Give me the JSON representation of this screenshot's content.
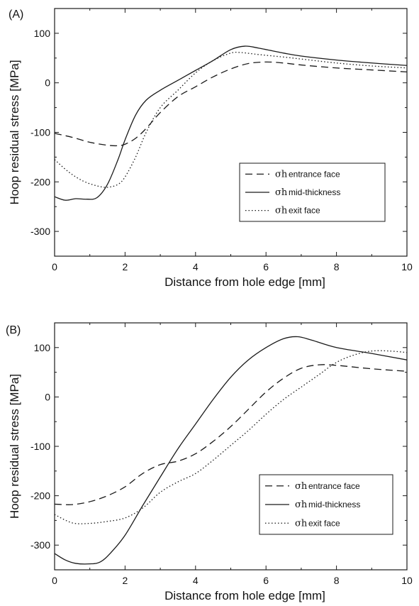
{
  "figure": {
    "background": "#ffffff",
    "line_color": "#1a1a1a"
  },
  "chart_data": [
    {
      "type": "line",
      "panel_label": "(A)",
      "xlabel": "Distance from hole edge [mm]",
      "ylabel": "Hoop residual stress [MPa]",
      "xlim": [
        0,
        10
      ],
      "ylim": [
        -350,
        150
      ],
      "xticks": [
        0,
        2,
        4,
        6,
        8,
        10
      ],
      "yticks": [
        100,
        0,
        -100,
        -200,
        -300
      ],
      "grid": false,
      "legend_position": "lower-right",
      "series": [
        {
          "symbol": "σh",
          "name": "entrance face",
          "style": "dashed",
          "x": [
            0,
            0.5,
            1,
            1.5,
            1.8,
            2.0,
            2.3,
            2.6,
            3,
            3.5,
            4,
            4.5,
            5,
            5.5,
            6,
            6.5,
            7,
            8,
            9,
            10
          ],
          "y": [
            -102,
            -110,
            -120,
            -126,
            -127,
            -124,
            -112,
            -92,
            -60,
            -28,
            -8,
            12,
            28,
            39,
            42,
            40,
            36,
            30,
            26,
            22
          ]
        },
        {
          "symbol": "σh",
          "name": "mid-thickness",
          "style": "solid",
          "x": [
            0,
            0.3,
            0.6,
            0.9,
            1.2,
            1.5,
            1.8,
            2.0,
            2.3,
            2.6,
            3,
            3.5,
            4,
            4.5,
            5,
            5.4,
            5.8,
            6.5,
            7,
            8,
            9,
            10
          ],
          "y": [
            -230,
            -237,
            -234,
            -235,
            -232,
            -205,
            -155,
            -115,
            -65,
            -35,
            -15,
            5,
            25,
            45,
            67,
            74,
            70,
            60,
            54,
            46,
            40,
            35
          ]
        },
        {
          "symbol": "σh",
          "name": "exit face",
          "style": "dotted",
          "x": [
            0,
            0.4,
            0.8,
            1.2,
            1.5,
            1.8,
            2.0,
            2.3,
            2.6,
            3,
            3.5,
            4,
            4.5,
            5,
            5.3,
            5.8,
            6.5,
            7,
            8,
            9,
            10
          ],
          "y": [
            -155,
            -180,
            -198,
            -208,
            -211,
            -205,
            -190,
            -150,
            -100,
            -50,
            -15,
            20,
            45,
            60,
            61,
            57,
            52,
            48,
            40,
            34,
            30
          ]
        }
      ]
    },
    {
      "type": "line",
      "panel_label": "(B)",
      "xlabel": "Distance from hole edge [mm]",
      "ylabel": "Hoop residual stress [MPa]",
      "xlim": [
        0,
        10
      ],
      "ylim": [
        -350,
        150
      ],
      "xticks": [
        0,
        2,
        4,
        6,
        8,
        10
      ],
      "yticks": [
        100,
        0,
        -100,
        -200,
        -300
      ],
      "grid": false,
      "legend_position": "lower-right",
      "series": [
        {
          "symbol": "σh",
          "name": "entrance face",
          "style": "dashed",
          "x": [
            0,
            0.5,
            1,
            1.5,
            2,
            2.5,
            3,
            3.5,
            4,
            4.5,
            5,
            5.5,
            6,
            6.5,
            7,
            7.5,
            8,
            9,
            10
          ],
          "y": [
            -217,
            -218,
            -212,
            -200,
            -182,
            -155,
            -137,
            -130,
            -115,
            -90,
            -60,
            -25,
            10,
            38,
            58,
            65,
            64,
            57,
            52
          ]
        },
        {
          "symbol": "σh",
          "name": "mid-thickness",
          "style": "solid",
          "x": [
            0,
            0.3,
            0.6,
            1.0,
            1.3,
            1.6,
            2,
            2.5,
            3,
            3.5,
            4,
            4.5,
            5,
            5.5,
            6,
            6.5,
            6.9,
            7.3,
            8,
            9,
            10
          ],
          "y": [
            -317,
            -330,
            -337,
            -338,
            -334,
            -315,
            -280,
            -220,
            -162,
            -105,
            -55,
            -5,
            40,
            75,
            100,
            118,
            122,
            115,
            100,
            88,
            75
          ]
        },
        {
          "symbol": "σh",
          "name": "exit face",
          "style": "dotted",
          "x": [
            0,
            0.5,
            1,
            1.5,
            2,
            2.5,
            3,
            3.5,
            4,
            4.5,
            5,
            5.5,
            6,
            6.5,
            7,
            7.5,
            8,
            8.5,
            9,
            9.5,
            10
          ],
          "y": [
            -238,
            -255,
            -256,
            -252,
            -245,
            -225,
            -193,
            -172,
            -155,
            -128,
            -98,
            -68,
            -35,
            -5,
            20,
            45,
            70,
            85,
            93,
            93,
            90
          ]
        }
      ]
    }
  ]
}
